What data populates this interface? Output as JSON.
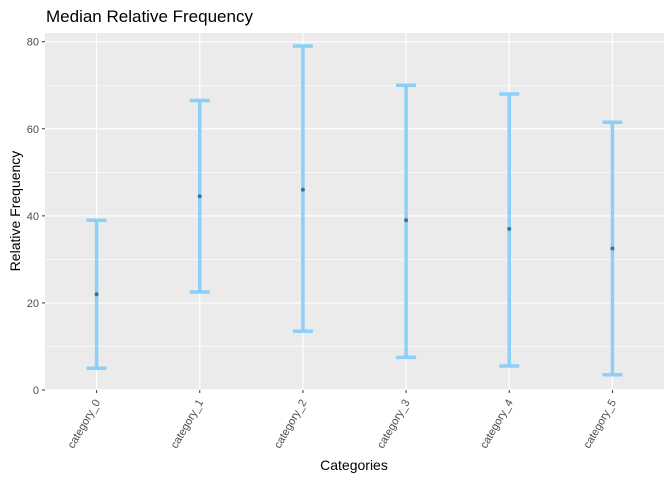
{
  "chart_data": {
    "type": "errorbar",
    "title": "Median Relative Frequency",
    "xlabel": "Categories",
    "ylabel": "Relative Frequency",
    "categories": [
      "category_0",
      "category_1",
      "category_2",
      "category_3",
      "category_4",
      "category_5"
    ],
    "median": [
      22,
      44.5,
      46,
      39,
      37,
      32.5
    ],
    "lower": [
      5,
      22.5,
      13.5,
      7.5,
      5.5,
      3.5
    ],
    "upper": [
      39,
      66.5,
      79,
      70,
      68,
      61.5
    ],
    "ylim": [
      0,
      82
    ],
    "y_ticks": [
      0,
      20,
      40,
      60,
      80
    ],
    "grid": true,
    "colors": {
      "panel": "#ebebeb",
      "grid": "#ffffff",
      "errorbar": "#87cefa",
      "point": "#4a6f8a"
    }
  }
}
